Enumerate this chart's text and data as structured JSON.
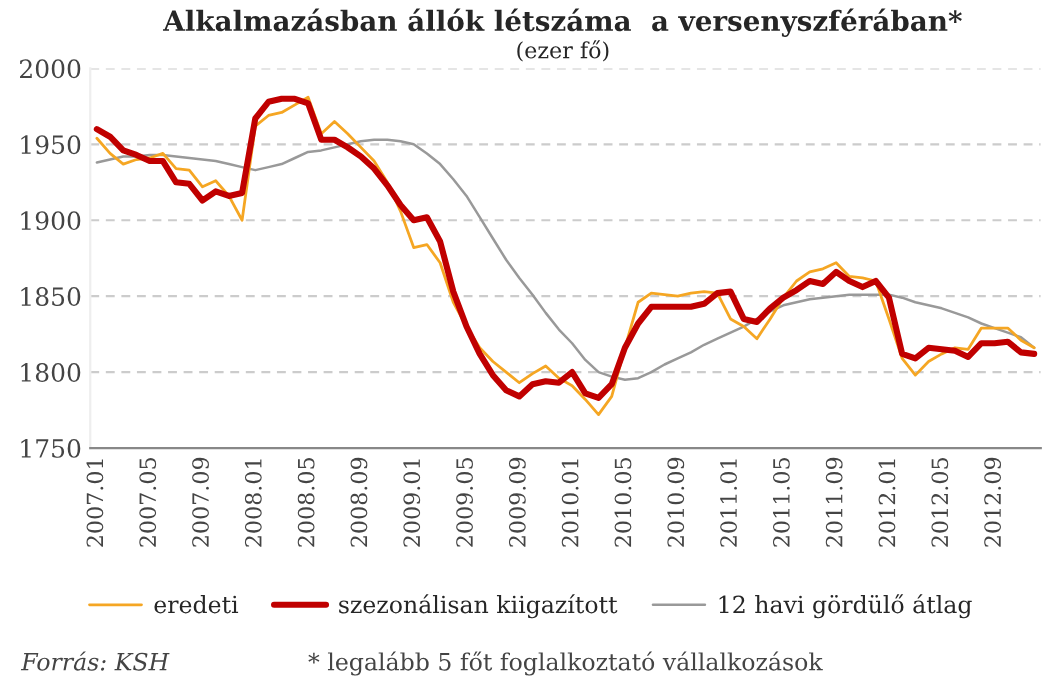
{
  "chart_data": {
    "type": "line",
    "title": "Alkalmazásban állók létszáma  a versenyszférában*",
    "subtitle": "(ezer fő)",
    "categories": [
      "2007.01",
      null,
      null,
      null,
      "2007.05",
      null,
      null,
      null,
      "2007.09",
      null,
      null,
      null,
      "2008.01",
      null,
      null,
      null,
      "2008.05",
      null,
      null,
      null,
      "2008.09",
      null,
      null,
      null,
      "2009.01",
      null,
      null,
      null,
      "2009.05",
      null,
      null,
      null,
      "2009.09",
      null,
      null,
      null,
      "2010.01",
      null,
      null,
      null,
      "2010.05",
      null,
      null,
      null,
      "2010.09",
      null,
      null,
      null,
      "2011.01",
      null,
      null,
      null,
      "2011.05",
      null,
      null,
      null,
      "2011.09",
      null,
      null,
      null,
      "2012.01",
      null,
      null,
      null,
      "2012.05",
      null,
      null,
      null,
      "2012.09",
      null,
      null,
      null
    ],
    "series": [
      {
        "name": "eredeti",
        "color": "#f5a623",
        "values": [
          1954,
          1944,
          1937,
          1940,
          1941,
          1944,
          1934,
          1933,
          1922,
          1926,
          1916,
          1900,
          1962,
          1969,
          1971,
          1976,
          1981,
          1957,
          1965,
          1957,
          1948,
          1939,
          1925,
          1906,
          1882,
          1884,
          1872,
          1846,
          1830,
          1816,
          1807,
          1800,
          1793,
          1799,
          1804,
          1796,
          1791,
          1782,
          1772,
          1784,
          1816,
          1846,
          1852,
          1851,
          1850,
          1852,
          1853,
          1852,
          1835,
          1830,
          1822,
          1835,
          1849,
          1860,
          1866,
          1868,
          1872,
          1863,
          1862,
          1860,
          1835,
          1809,
          1798,
          1807,
          1812,
          1816,
          1815,
          1829,
          1829,
          1829,
          1821,
          1816
        ]
      },
      {
        "name": "szezonálisan kiigazított",
        "color": "#c00000",
        "values": [
          1960,
          1955,
          1946,
          1943,
          1939,
          1939,
          1925,
          1924,
          1913,
          1919,
          1916,
          1918,
          1967,
          1978,
          1980,
          1980,
          1977,
          1953,
          1953,
          1948,
          1942,
          1934,
          1923,
          1910,
          1900,
          1902,
          1886,
          1853,
          1830,
          1812,
          1798,
          1788,
          1784,
          1792,
          1794,
          1793,
          1800,
          1786,
          1783,
          1792,
          1816,
          1832,
          1843,
          1843,
          1843,
          1843,
          1845,
          1852,
          1853,
          1835,
          1833,
          1842,
          1849,
          1854,
          1860,
          1858,
          1866,
          1860,
          1856,
          1860,
          1849,
          1812,
          1809,
          1816,
          1815,
          1814,
          1810,
          1819,
          1819,
          1820,
          1813,
          1812
        ]
      },
      {
        "name": "12 havi gördülő átlag",
        "color": "#999999",
        "values": [
          1938,
          1940,
          1942,
          1942,
          1943,
          1943,
          1942,
          1941,
          1940,
          1939,
          1937,
          1935,
          1933,
          1935,
          1937,
          1941,
          1945,
          1946,
          1948,
          1950,
          1952,
          1953,
          1953,
          1952,
          1950,
          1944,
          1937,
          1927,
          1916,
          1902,
          1888,
          1874,
          1862,
          1851,
          1839,
          1828,
          1819,
          1808,
          1800,
          1797,
          1795,
          1796,
          1800,
          1805,
          1809,
          1813,
          1818,
          1822,
          1826,
          1830,
          1835,
          1840,
          1844,
          1846,
          1848,
          1849,
          1850,
          1851,
          1851,
          1851,
          1851,
          1849,
          1846,
          1844,
          1842,
          1839,
          1836,
          1832,
          1829,
          1826,
          1823,
          1816
        ]
      }
    ],
    "ylim": [
      1750,
      2000
    ],
    "yticks": [
      1750,
      1800,
      1850,
      1900,
      1950,
      2000
    ],
    "grid": "y",
    "legend": "bottom",
    "marker": "none",
    "line_style": "solid",
    "annotations": [
      "Forrás: KSH",
      "* legalább 5 főt foglalkoztató vállalkozások"
    ]
  }
}
